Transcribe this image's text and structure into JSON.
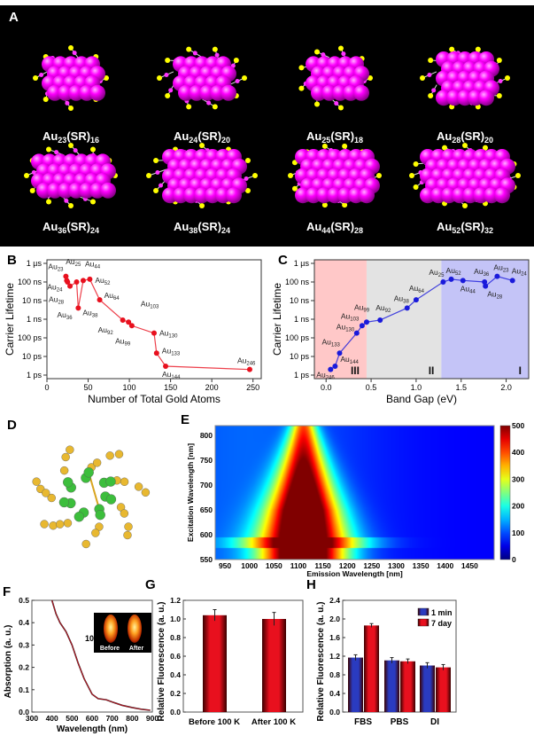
{
  "panel_labels": {
    "a": "A",
    "b": "B",
    "c": "C",
    "d": "D",
    "e": "E",
    "f": "F",
    "g": "G",
    "h": "H"
  },
  "panel_a": {
    "clusters": [
      {
        "au": "23",
        "sr": "16"
      },
      {
        "au": "24",
        "sr": "20"
      },
      {
        "au": "25",
        "sr": "18"
      },
      {
        "au": "28",
        "sr": "20"
      },
      {
        "au": "36",
        "sr": "24"
      },
      {
        "au": "38",
        "sr": "24"
      },
      {
        "au": "44",
        "sr": "28"
      },
      {
        "au": "52",
        "sr": "32"
      }
    ],
    "colors": {
      "gold_atom": "#ff00ff",
      "sulfur": "#ffff00",
      "background": "#000000"
    }
  },
  "chart_data": [
    {
      "panel": "B",
      "type": "line",
      "xlabel": "Number of Total Gold Atoms",
      "ylabel": "Carrier Lifetime",
      "xlim": [
        0,
        260
      ],
      "xticks": [
        "0",
        "50",
        "100",
        "150",
        "200",
        "250"
      ],
      "yscale": "log",
      "ylim_seconds": [
        1e-12,
        1e-06
      ],
      "yticks": [
        "1 µs",
        "100 ns",
        "10 ns",
        "1 ns",
        "100 ps",
        "10 ps",
        "1 ps"
      ],
      "color": "#e8101e",
      "points": [
        {
          "label": "23",
          "x": 23,
          "y": 2e-07
        },
        {
          "label": "24",
          "x": 24,
          "y": 1.2e-07
        },
        {
          "label": "25",
          "x": 25,
          "y": 1e-07
        },
        {
          "label": "28",
          "x": 28,
          "y": 6e-08
        },
        {
          "label": "36",
          "x": 36,
          "y": 1e-07
        },
        {
          "label": "38",
          "x": 38,
          "y": 4e-09
        },
        {
          "label": "44",
          "x": 44,
          "y": 1.2e-07
        },
        {
          "label": "52",
          "x": 52,
          "y": 1.4e-07
        },
        {
          "label": "64",
          "x": 64,
          "y": 1.1e-08
        },
        {
          "label": "92",
          "x": 92,
          "y": 9e-10
        },
        {
          "label": "99",
          "x": 99,
          "y": 7e-10
        },
        {
          "label": "103",
          "x": 103,
          "y": 4.5e-10
        },
        {
          "label": "130",
          "x": 130,
          "y": 1.8e-10
        },
        {
          "label": "133",
          "x": 133,
          "y": 1.5e-11
        },
        {
          "label": "144",
          "x": 144,
          "y": 3e-12
        },
        {
          "label": "246",
          "x": 246,
          "y": 2e-12
        }
      ]
    },
    {
      "panel": "C",
      "type": "line",
      "xlabel": "Band Gap (eV)",
      "ylabel": "Carrier Lifetime",
      "xlim": [
        -0.13,
        2.25
      ],
      "xticks": [
        "0.0",
        "0.5",
        "1.0",
        "1.5",
        "2.0"
      ],
      "yscale": "log",
      "ylim_seconds": [
        1e-12,
        1e-06
      ],
      "yticks": [
        "1 µs",
        "100 ns",
        "10 ns",
        "1 ns",
        "100 ps",
        "10 ps",
        "1 ps"
      ],
      "color": "#1a1adb",
      "regions": [
        {
          "label": "III",
          "from": -0.13,
          "to": 0.45,
          "color": "#ffc8c8"
        },
        {
          "label": "II",
          "from": 0.45,
          "to": 1.28,
          "color": "#e3e3e3"
        },
        {
          "label": "I",
          "from": 1.28,
          "to": 2.25,
          "color": "#c4c4f7"
        }
      ],
      "points": [
        {
          "label": "246",
          "x": 0.05,
          "y": 2e-12
        },
        {
          "label": "144",
          "x": 0.1,
          "y": 3e-12
        },
        {
          "label": "133",
          "x": 0.15,
          "y": 1.5e-11
        },
        {
          "label": "130",
          "x": 0.34,
          "y": 1.8e-10
        },
        {
          "label": "103",
          "x": 0.4,
          "y": 4.5e-10
        },
        {
          "label": "99",
          "x": 0.45,
          "y": 7e-10
        },
        {
          "label": "92",
          "x": 0.6,
          "y": 9e-10
        },
        {
          "label": "38",
          "x": 0.9,
          "y": 4e-09
        },
        {
          "label": "64",
          "x": 1.0,
          "y": 1.1e-08
        },
        {
          "label": "25",
          "x": 1.3,
          "y": 1e-07
        },
        {
          "label": "52",
          "x": 1.39,
          "y": 1.4e-07
        },
        {
          "label": "44",
          "x": 1.52,
          "y": 1.2e-07
        },
        {
          "label": "36",
          "x": 1.76,
          "y": 1e-07
        },
        {
          "label": "28",
          "x": 1.77,
          "y": 6e-08
        },
        {
          "label": "23",
          "x": 1.9,
          "y": 2e-07
        },
        {
          "label": "24",
          "x": 2.07,
          "y": 1.2e-07
        }
      ]
    },
    {
      "panel": "E",
      "type": "heatmap",
      "xlabel": "Emission Wavelength [nm]",
      "ylabel": "Excitation Wavelength [nm]",
      "xlim": [
        930,
        1500
      ],
      "ylim": [
        550,
        820
      ],
      "xticks": [
        "950",
        "1000",
        "1050",
        "1100",
        "1150",
        "1200",
        "1250",
        "1300",
        "1350",
        "1400",
        "1450"
      ],
      "yticks": [
        "550",
        "600",
        "650",
        "700",
        "750",
        "800"
      ],
      "colorbar": {
        "range": [
          0,
          500
        ],
        "ticks": [
          "0",
          "100",
          "200",
          "300",
          "400",
          "500"
        ],
        "colormap": "jet"
      },
      "peak": {
        "emission": 1110,
        "excitation_range": [
          550,
          700
        ],
        "value": 500
      }
    },
    {
      "panel": "F",
      "type": "line",
      "xlabel": "Wavelength (nm)",
      "ylabel": "Absorption (a. u.)",
      "xlim": [
        300,
        900
      ],
      "ylim": [
        0,
        0.5
      ],
      "xticks": [
        "300",
        "400",
        "500",
        "600",
        "700",
        "800",
        "900"
      ],
      "yticks": [
        "0.0",
        "0.1",
        "0.2",
        "0.3",
        "0.4",
        "0.5"
      ],
      "annotation": "100 K ultrafilter",
      "inset_labels": [
        "Before",
        "After"
      ],
      "x": [
        400,
        420,
        440,
        470,
        500,
        530,
        560,
        600,
        630,
        670,
        700,
        750,
        800,
        850,
        890
      ],
      "y": [
        0.5,
        0.44,
        0.4,
        0.36,
        0.3,
        0.22,
        0.15,
        0.08,
        0.06,
        0.055,
        0.045,
        0.03,
        0.02,
        0.012,
        0.008
      ]
    },
    {
      "panel": "G",
      "type": "bar",
      "ylabel": "Relative Fluorescence (a. u.)",
      "ylim": [
        0,
        1.2
      ],
      "yticks": [
        "0.0",
        "0.2",
        "0.4",
        "0.6",
        "0.8",
        "1.0",
        "1.2"
      ],
      "categories": [
        "Before 100 K",
        "After 100 K"
      ],
      "values": [
        1.04,
        1.0
      ],
      "errors": [
        0.06,
        0.07
      ],
      "color": "#e8101e"
    },
    {
      "panel": "H",
      "type": "bar",
      "ylabel": "Relative Fluorescence (a. u.)",
      "ylim": [
        0,
        2.4
      ],
      "yticks": [
        "0.0",
        "0.4",
        "0.8",
        "1.2",
        "1.6",
        "2.0",
        "2.4"
      ],
      "categories": [
        "FBS",
        "PBS",
        "DI"
      ],
      "legend": "top-right",
      "series": [
        {
          "name": "1 min",
          "values": [
            1.17,
            1.11,
            1.0
          ],
          "errors": [
            0.06,
            0.06,
            0.06
          ],
          "color": "#2233aa"
        },
        {
          "name": "7 day",
          "values": [
            1.86,
            1.09,
            0.96
          ],
          "errors": [
            0.04,
            0.05,
            0.06
          ],
          "color": "#e8101e"
        }
      ]
    }
  ]
}
